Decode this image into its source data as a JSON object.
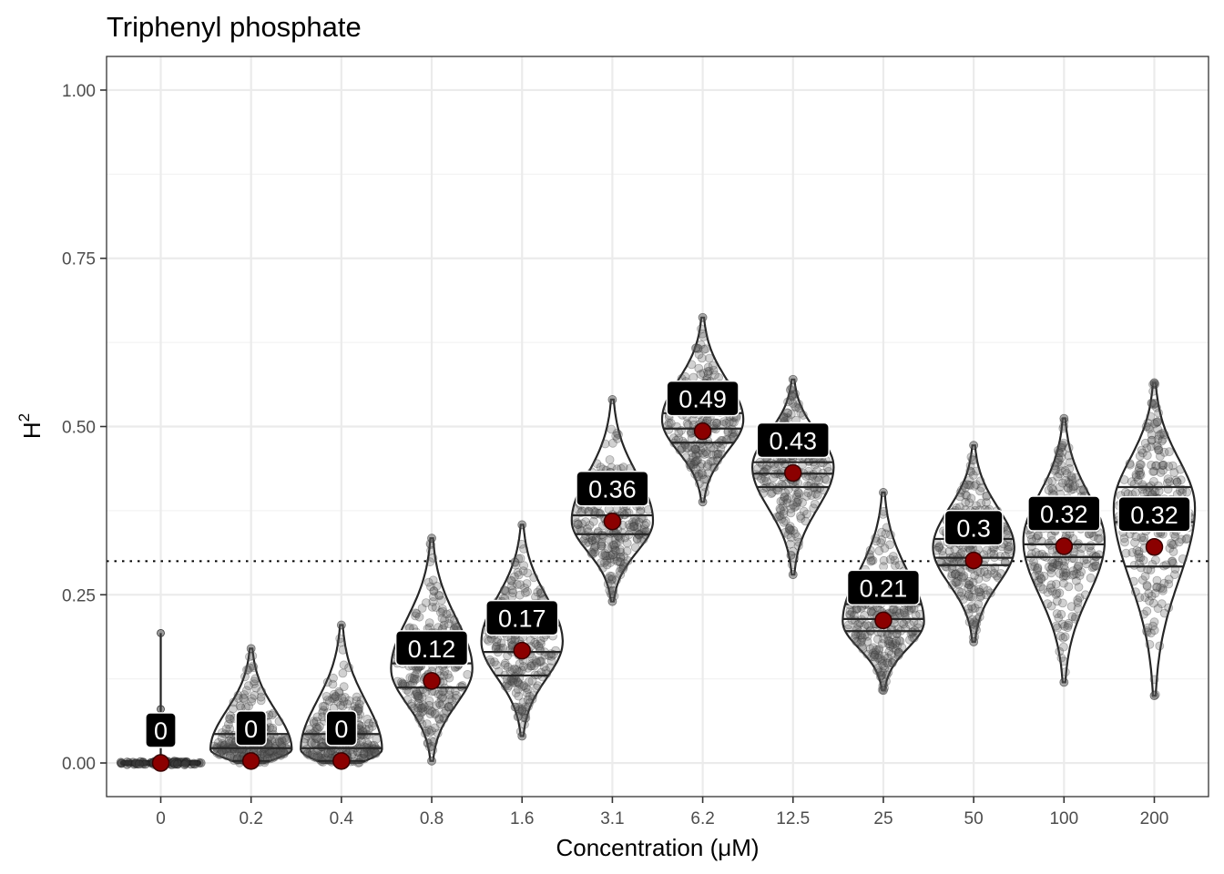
{
  "chart_data": {
    "type": "violin",
    "title": "Triphenyl phosphate",
    "xlabel": "Concentration (μM)",
    "ylabel_base": "H",
    "ylabel_sup": "2",
    "ylim": [
      -0.05,
      1.05
    ],
    "yticks": [
      "0.00",
      "0.25",
      "0.50",
      "0.75",
      "1.00"
    ],
    "ytick_values": [
      0,
      0.25,
      0.5,
      0.75,
      1.0
    ],
    "grid": true,
    "reference_line": 0.3,
    "categories": [
      "0",
      "0.2",
      "0.4",
      "0.8",
      "1.6",
      "3.1",
      "6.2",
      "12.5",
      "25",
      "50",
      "100",
      "200"
    ],
    "mean_labels": [
      "0",
      "0",
      "0",
      "0.12",
      "0.17",
      "0.36",
      "0.49",
      "0.43",
      "0.21",
      "0.3",
      "0.32",
      "0.32"
    ],
    "means": [
      0.0,
      0.003,
      0.003,
      0.122,
      0.167,
      0.359,
      0.493,
      0.431,
      0.212,
      0.301,
      0.322,
      0.321
    ],
    "distributions": [
      {
        "min": 0.0,
        "max": 0.193,
        "q1": 0.0,
        "median": 0.0,
        "q3": 0.0,
        "mode": 0.0
      },
      {
        "min": 0.0,
        "max": 0.17,
        "q1": 0.003,
        "median": 0.022,
        "q3": 0.043,
        "mode": 0.02
      },
      {
        "min": 0.0,
        "max": 0.205,
        "q1": 0.003,
        "median": 0.022,
        "q3": 0.043,
        "mode": 0.02
      },
      {
        "min": 0.003,
        "max": 0.334,
        "q1": 0.112,
        "median": 0.148,
        "q3": 0.192,
        "mode": 0.14
      },
      {
        "min": 0.04,
        "max": 0.354,
        "q1": 0.13,
        "median": 0.165,
        "q3": 0.204,
        "mode": 0.18
      },
      {
        "min": 0.24,
        "max": 0.54,
        "q1": 0.34,
        "median": 0.368,
        "q3": 0.4,
        "mode": 0.36
      },
      {
        "min": 0.388,
        "max": 0.662,
        "q1": 0.476,
        "median": 0.497,
        "q3": 0.52,
        "mode": 0.51
      },
      {
        "min": 0.28,
        "max": 0.57,
        "q1": 0.41,
        "median": 0.43,
        "q3": 0.447,
        "mode": 0.44
      },
      {
        "min": 0.108,
        "max": 0.402,
        "q1": 0.196,
        "median": 0.214,
        "q3": 0.236,
        "mode": 0.21
      },
      {
        "min": 0.18,
        "max": 0.472,
        "q1": 0.294,
        "median": 0.305,
        "q3": 0.333,
        "mode": 0.32
      },
      {
        "min": 0.12,
        "max": 0.512,
        "q1": 0.306,
        "median": 0.325,
        "q3": 0.356,
        "mode": 0.33
      },
      {
        "min": 0.1,
        "max": 0.565,
        "q1": 0.292,
        "median": 0.358,
        "q3": 0.41,
        "mode": 0.38
      }
    ]
  }
}
